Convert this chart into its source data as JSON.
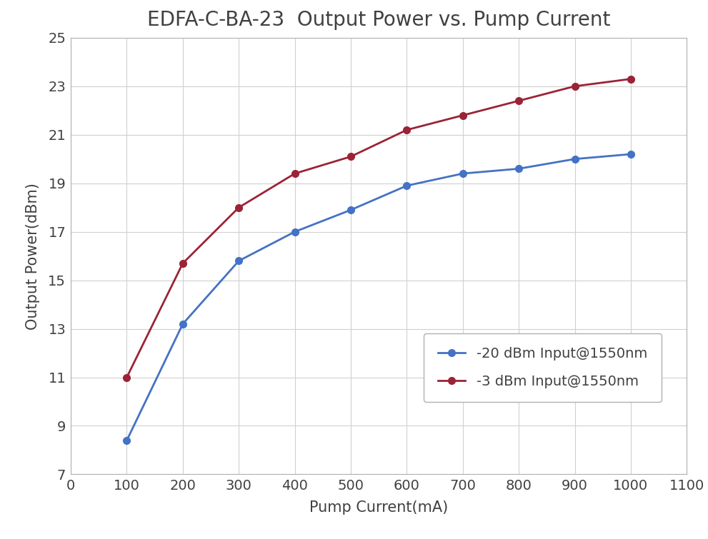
{
  "title": "EDFA-C-BA-23  Output Power vs. Pump Current",
  "xlabel": "Pump Current(mA)",
  "ylabel": "Output Power(dBm)",
  "x_blue": [
    100,
    200,
    300,
    400,
    500,
    600,
    700,
    800,
    900,
    1000
  ],
  "y_blue": [
    8.4,
    13.2,
    15.8,
    17.0,
    17.9,
    18.9,
    19.4,
    19.6,
    20.0,
    20.2
  ],
  "x_red": [
    100,
    200,
    300,
    400,
    500,
    600,
    700,
    800,
    900,
    1000
  ],
  "y_red": [
    11.0,
    15.7,
    18.0,
    19.4,
    20.1,
    21.2,
    21.8,
    22.4,
    23.0,
    23.3
  ],
  "blue_color": "#4472C4",
  "red_color": "#9B2335",
  "blue_label": "-20 dBm Input@1550nm",
  "red_label": "-3 dBm Input@1550nm",
  "xlim": [
    0,
    1100
  ],
  "ylim": [
    7,
    25
  ],
  "xticks": [
    0,
    100,
    200,
    300,
    400,
    500,
    600,
    700,
    800,
    900,
    1000,
    1100
  ],
  "yticks": [
    7,
    9,
    11,
    13,
    15,
    17,
    19,
    21,
    23,
    25
  ],
  "title_fontsize": 20,
  "label_fontsize": 15,
  "tick_fontsize": 14,
  "legend_fontsize": 14,
  "marker": "o",
  "markersize": 7,
  "linewidth": 2.0,
  "background_color": "#ffffff",
  "grid_color": "#d0d0d0",
  "text_color": "#404040",
  "border_color": "#b0b0b0"
}
